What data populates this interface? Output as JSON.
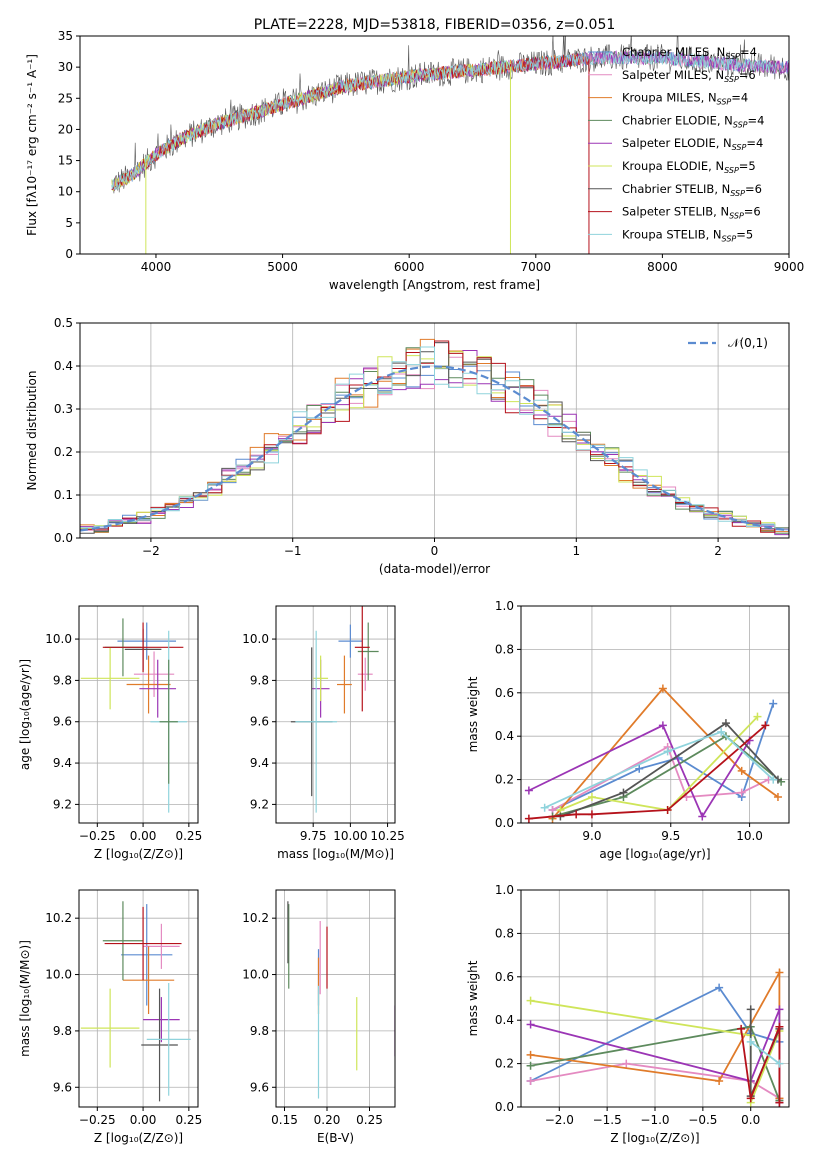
{
  "colors": [
    "#5b8bd0",
    "#e48ac1",
    "#e07b2a",
    "#5d8a5d",
    "#9b35b5",
    "#cfe55a",
    "#555555",
    "#b5121b",
    "#8fd3dc"
  ],
  "chart_data": [
    {
      "id": "spectrum",
      "type": "line",
      "title": "PLATE=2228, MJD=53818, FIBERID=0356, z=0.051",
      "xlabel": "wavelength [Angstrom, rest frame]",
      "ylabel": "Flux [fλ10⁻¹⁷ erg cm⁻² s⁻¹ A⁻¹]",
      "xlim": [
        3400,
        9000
      ],
      "ylim": [
        0,
        35
      ],
      "xticks": [
        4000,
        5000,
        6000,
        7000,
        8000,
        9000
      ],
      "yticks": [
        0,
        5,
        10,
        15,
        20,
        25,
        30,
        35
      ],
      "legend_position": "right",
      "legend": [
        {
          "label": "Chabrier MILES, N",
          "sub": "SSP",
          "rest": "=4",
          "color": "#5b8bd0"
        },
        {
          "label": "Salpeter MILES, N",
          "sub": "SSP",
          "rest": "=6",
          "color": "#e48ac1"
        },
        {
          "label": "Kroupa MILES, N",
          "sub": "SSP",
          "rest": "=4",
          "color": "#e07b2a"
        },
        {
          "label": "Chabrier ELODIE, N",
          "sub": "SSP",
          "rest": "=4",
          "color": "#5d8a5d"
        },
        {
          "label": "Salpeter ELODIE, N",
          "sub": "SSP",
          "rest": "=4",
          "color": "#9b35b5"
        },
        {
          "label": "Kroupa ELODIE, N",
          "sub": "SSP",
          "rest": "=5",
          "color": "#cfe55a"
        },
        {
          "label": "Chabrier STELIB, N",
          "sub": "SSP",
          "rest": "=6",
          "color": "#555555"
        },
        {
          "label": "Salpeter STELIB, N",
          "sub": "SSP",
          "rest": "=6",
          "color": "#b5121b"
        },
        {
          "label": "Kroupa STELIB, N",
          "sub": "SSP",
          "rest": "=5",
          "color": "#8fd3dc"
        }
      ],
      "continuum": [
        [
          3650,
          11
        ],
        [
          3800,
          12.5
        ],
        [
          4000,
          16
        ],
        [
          4200,
          18.5
        ],
        [
          4500,
          21
        ],
        [
          5000,
          24
        ],
        [
          5500,
          27
        ],
        [
          6000,
          28.5
        ],
        [
          6500,
          29.5
        ],
        [
          7000,
          30.5
        ],
        [
          7500,
          31.5
        ],
        [
          8000,
          31.5
        ],
        [
          8500,
          30.5
        ],
        [
          8900,
          30
        ]
      ],
      "model_ranges": [
        [
          3650,
          9000
        ],
        [
          3650,
          9000
        ],
        [
          3650,
          7420
        ],
        [
          3650,
          9000
        ],
        [
          3650,
          9000
        ],
        [
          3650,
          6800
        ],
        [
          3650,
          9000
        ],
        [
          3650,
          7420
        ],
        [
          3650,
          8900
        ]
      ],
      "dropouts": [
        {
          "x": 3920,
          "series": 5
        },
        {
          "x": 6800,
          "series": 5
        },
        {
          "x": 7420,
          "series": 7
        }
      ]
    },
    {
      "id": "residuals",
      "type": "histogram",
      "xlabel": "(data-model)/error",
      "ylabel": "Normed distribution",
      "xlim": [
        -2.5,
        2.5
      ],
      "ylim": [
        0,
        0.5
      ],
      "xticks": [
        -2,
        -1,
        0,
        1,
        2
      ],
      "yticks": [
        0,
        0.1,
        0.2,
        0.3,
        0.4,
        0.5
      ],
      "bin_width": 0.1,
      "legend_position": "top-right",
      "reference_label": "𝒩(0,1)",
      "reference_color": "#5b8bd0"
    },
    {
      "id": "age-vs-Z",
      "type": "errorbar",
      "xlabel": "Z [log₁₀(Z/Z⊙)]",
      "ylabel": "age  [log₁₀(age/yr)]",
      "xlim": [
        -0.35,
        0.3
      ],
      "ylim": [
        9.11,
        10.16
      ],
      "xticks": [
        -0.25,
        0.0,
        0.25
      ],
      "yticks": [
        9.2,
        9.4,
        9.6,
        9.8,
        10.0
      ],
      "points": [
        {
          "x": 0.02,
          "y": 9.99,
          "xerr": 0.16,
          "yerr": 0.09,
          "series": 0
        },
        {
          "x": 0.06,
          "y": 9.83,
          "xerr": 0.11,
          "yerr": 0.11,
          "series": 1
        },
        {
          "x": 0.03,
          "y": 9.78,
          "xerr": 0.12,
          "yerr": 0.14,
          "series": 2
        },
        {
          "x": -0.11,
          "y": 9.96,
          "xerr": 0.1,
          "yerr": 0.14,
          "series": 3
        },
        {
          "x": 0.08,
          "y": 9.76,
          "xerr": 0.1,
          "yerr": 0.14,
          "series": 4
        },
        {
          "x": -0.18,
          "y": 9.81,
          "xerr": 0.16,
          "yerr": 0.15,
          "series": 5
        },
        {
          "x": 0.0,
          "y": 9.95,
          "xerr": 0.1,
          "yerr": 0.1,
          "series": 6
        },
        {
          "x": 0.0,
          "y": 9.96,
          "xerr": 0.22,
          "yerr": 0.12,
          "series": 7
        },
        {
          "x": 0.14,
          "y": 9.6,
          "xerr": 0.1,
          "yerr": 0.44,
          "series": 8
        },
        {
          "x": 0.14,
          "y": 9.6,
          "xerr": 0.05,
          "yerr": 0.3,
          "series": 3
        }
      ]
    },
    {
      "id": "age-vs-mass",
      "type": "errorbar",
      "xlabel": "mass [log₁₀(M/M⊙)]",
      "ylabel": "",
      "xlim": [
        9.5,
        10.3
      ],
      "ylim": [
        9.11,
        10.16
      ],
      "xticks": [
        9.75,
        10.0,
        10.25
      ],
      "yticks": [
        9.2,
        9.4,
        9.6,
        9.8,
        10.0
      ],
      "points": [
        {
          "x": 10.0,
          "y": 9.99,
          "xerr": 0.08,
          "yerr": 0.08,
          "series": 0
        },
        {
          "x": 10.1,
          "y": 9.83,
          "xerr": 0.05,
          "yerr": 0.08,
          "series": 1
        },
        {
          "x": 9.96,
          "y": 9.78,
          "xerr": 0.05,
          "yerr": 0.14,
          "series": 2
        },
        {
          "x": 10.12,
          "y": 9.94,
          "xerr": 0.07,
          "yerr": 0.14,
          "series": 3
        },
        {
          "x": 9.8,
          "y": 9.76,
          "xerr": 0.06,
          "yerr": 0.14,
          "series": 4
        },
        {
          "x": 9.8,
          "y": 9.81,
          "xerr": 0.05,
          "yerr": 0.11,
          "series": 5
        },
        {
          "x": 9.74,
          "y": 9.6,
          "xerr": 0.14,
          "yerr": 0.36,
          "series": 6
        },
        {
          "x": 10.08,
          "y": 9.96,
          "xerr": 0.05,
          "yerr": 0.31,
          "series": 7
        },
        {
          "x": 9.77,
          "y": 9.6,
          "xerr": 0.14,
          "yerr": 0.44,
          "series": 8
        }
      ]
    },
    {
      "id": "massweight-vs-age",
      "type": "line",
      "xlabel": "age  [log₁₀(age/yr)]",
      "ylabel": "mass weight",
      "xlim": [
        8.55,
        10.25
      ],
      "ylim": [
        0,
        1
      ],
      "xticks": [
        9.0,
        9.5,
        10.0
      ],
      "yticks": [
        0,
        0.2,
        0.4,
        0.6,
        0.8,
        1.0
      ],
      "series": [
        {
          "color_index": 0,
          "points": [
            [
              8.75,
              0.06
            ],
            [
              9.3,
              0.25
            ],
            [
              9.55,
              0.3
            ],
            [
              9.95,
              0.12
            ],
            [
              10.15,
              0.55
            ]
          ]
        },
        {
          "color_index": 1,
          "points": [
            [
              8.75,
              0.06
            ],
            [
              9.48,
              0.35
            ],
            [
              9.6,
              0.12
            ],
            [
              9.95,
              0.14
            ],
            [
              10.12,
              0.2
            ]
          ]
        },
        {
          "color_index": 2,
          "points": [
            [
              8.75,
              0.02
            ],
            [
              9.45,
              0.62
            ],
            [
              9.95,
              0.24
            ],
            [
              10.18,
              0.12
            ]
          ]
        },
        {
          "color_index": 3,
          "points": [
            [
              8.75,
              0.03
            ],
            [
              9.2,
              0.12
            ],
            [
              9.85,
              0.4
            ],
            [
              10.2,
              0.19
            ]
          ]
        },
        {
          "color_index": 4,
          "points": [
            [
              8.6,
              0.15
            ],
            [
              9.45,
              0.45
            ],
            [
              9.7,
              0.03
            ],
            [
              10.0,
              0.38
            ]
          ]
        },
        {
          "color_index": 5,
          "points": [
            [
              8.8,
              0.06
            ],
            [
              9.0,
              0.12
            ],
            [
              9.48,
              0.06
            ],
            [
              10.05,
              0.49
            ]
          ]
        },
        {
          "color_index": 6,
          "points": [
            [
              8.8,
              0.03
            ],
            [
              9.2,
              0.14
            ],
            [
              9.85,
              0.46
            ],
            [
              10.18,
              0.2
            ]
          ]
        },
        {
          "color_index": 7,
          "points": [
            [
              8.6,
              0.02
            ],
            [
              8.9,
              0.04
            ],
            [
              9.0,
              0.04
            ],
            [
              9.48,
              0.06
            ],
            [
              10.1,
              0.45
            ]
          ]
        },
        {
          "color_index": 8,
          "points": [
            [
              8.7,
              0.07
            ],
            [
              9.48,
              0.33
            ],
            [
              9.82,
              0.42
            ],
            [
              10.15,
              0.2
            ]
          ]
        }
      ]
    },
    {
      "id": "mass-vs-Z",
      "type": "errorbar",
      "xlabel": "Z [log₁₀(Z/Z⊙)]",
      "ylabel": "mass [log₁₀(M/M⊙)]",
      "xlim": [
        -0.35,
        0.3
      ],
      "ylim": [
        9.53,
        10.3
      ],
      "xticks": [
        -0.25,
        0.0,
        0.25
      ],
      "yticks": [
        9.6,
        9.8,
        10.0,
        10.2
      ],
      "points": [
        {
          "x": 0.02,
          "y": 10.07,
          "xerr": 0.14,
          "yerr": 0.18,
          "series": 0
        },
        {
          "x": 0.1,
          "y": 10.1,
          "xerr": 0.1,
          "yerr": 0.08,
          "series": 1
        },
        {
          "x": 0.03,
          "y": 9.98,
          "xerr": 0.14,
          "yerr": 0.12,
          "series": 2
        },
        {
          "x": -0.11,
          "y": 10.12,
          "xerr": 0.11,
          "yerr": 0.14,
          "series": 3
        },
        {
          "x": 0.1,
          "y": 9.84,
          "xerr": 0.1,
          "yerr": 0.08,
          "series": 4
        },
        {
          "x": -0.18,
          "y": 9.81,
          "xerr": 0.16,
          "yerr": 0.14,
          "series": 5
        },
        {
          "x": 0.09,
          "y": 9.75,
          "xerr": 0.1,
          "yerr": 0.2,
          "series": 6
        },
        {
          "x": 0.0,
          "y": 10.11,
          "xerr": 0.21,
          "yerr": 0.13,
          "series": 7
        },
        {
          "x": 0.14,
          "y": 9.77,
          "xerr": 0.12,
          "yerr": 0.2,
          "series": 8
        }
      ]
    },
    {
      "id": "mass-vs-EBV",
      "type": "errorbar",
      "xlabel": "E(B-V)",
      "ylabel": "",
      "xlim": [
        0.14,
        0.28
      ],
      "ylim": [
        9.53,
        10.3
      ],
      "xticks": [
        0.15,
        0.2,
        0.25
      ],
      "yticks": [
        9.6,
        9.8,
        10.0,
        10.2
      ],
      "points": [
        {
          "x": 0.19,
          "y": 9.99,
          "xerr": 0.0,
          "yerr": 0.1,
          "series": 0
        },
        {
          "x": 0.192,
          "y": 10.06,
          "xerr": 0.0,
          "yerr": 0.13,
          "series": 1
        },
        {
          "x": 0.19,
          "y": 9.96,
          "xerr": 0.0,
          "yerr": 0.1,
          "series": 2
        },
        {
          "x": 0.155,
          "y": 10.1,
          "xerr": 0.0,
          "yerr": 0.15,
          "series": 3
        },
        {
          "x": 0.28,
          "y": 9.8,
          "xerr": 0.0,
          "yerr": 0.09,
          "series": 4
        },
        {
          "x": 0.235,
          "y": 9.79,
          "xerr": 0.0,
          "yerr": 0.13,
          "series": 5
        },
        {
          "x": 0.154,
          "y": 10.15,
          "xerr": 0.0,
          "yerr": 0.11,
          "series": 6
        },
        {
          "x": 0.2,
          "y": 10.06,
          "xerr": 0.0,
          "yerr": 0.11,
          "series": 7
        },
        {
          "x": 0.19,
          "y": 9.76,
          "xerr": 0.0,
          "yerr": 0.2,
          "series": 8
        }
      ]
    },
    {
      "id": "massweight-vs-Z",
      "type": "line",
      "xlabel": "Z [log₁₀(Z/Z⊙)]",
      "ylabel": "mass weight",
      "xlim": [
        -2.4,
        0.4
      ],
      "ylim": [
        0,
        1
      ],
      "xticks": [
        -2.0,
        -1.5,
        -1.0,
        -0.5,
        0.0
      ],
      "yticks": [
        0,
        0.2,
        0.4,
        0.6,
        0.8,
        1.0
      ],
      "series": [
        {
          "color_index": 0,
          "points": [
            [
              -2.3,
              0.12
            ],
            [
              -0.33,
              0.55
            ],
            [
              0.0,
              0.34
            ],
            [
              0.3,
              0.3
            ]
          ]
        },
        {
          "color_index": 1,
          "points": [
            [
              -2.3,
              0.12
            ],
            [
              -1.3,
              0.2
            ],
            [
              0.0,
              0.12
            ],
            [
              0.3,
              0.04
            ]
          ]
        },
        {
          "color_index": 2,
          "points": [
            [
              -2.3,
              0.24
            ],
            [
              -0.33,
              0.12
            ],
            [
              0.3,
              0.62
            ],
            [
              0.3,
              0.04
            ]
          ]
        },
        {
          "color_index": 3,
          "points": [
            [
              -2.3,
              0.19
            ],
            [
              0.0,
              0.37
            ],
            [
              0.3,
              0.03
            ]
          ]
        },
        {
          "color_index": 4,
          "points": [
            [
              -2.3,
              0.38
            ],
            [
              0.0,
              0.12
            ],
            [
              0.3,
              0.45
            ],
            [
              0.3,
              0.02
            ]
          ]
        },
        {
          "color_index": 5,
          "points": [
            [
              -2.3,
              0.49
            ],
            [
              0.0,
              0.33
            ],
            [
              0.0,
              0.02
            ],
            [
              0.3,
              0.35
            ]
          ]
        },
        {
          "color_index": 6,
          "points": [
            [
              0.0,
              0.45
            ],
            [
              0.0,
              0.05
            ],
            [
              0.3,
              0.36
            ]
          ]
        },
        {
          "color_index": 7,
          "points": [
            [
              -0.1,
              0.36
            ],
            [
              0.0,
              0.04
            ],
            [
              0.3,
              0.37
            ],
            [
              0.3,
              0.02
            ]
          ]
        },
        {
          "color_index": 8,
          "points": [
            [
              0.0,
              0.3
            ],
            [
              0.3,
              0.2
            ]
          ]
        }
      ]
    }
  ]
}
